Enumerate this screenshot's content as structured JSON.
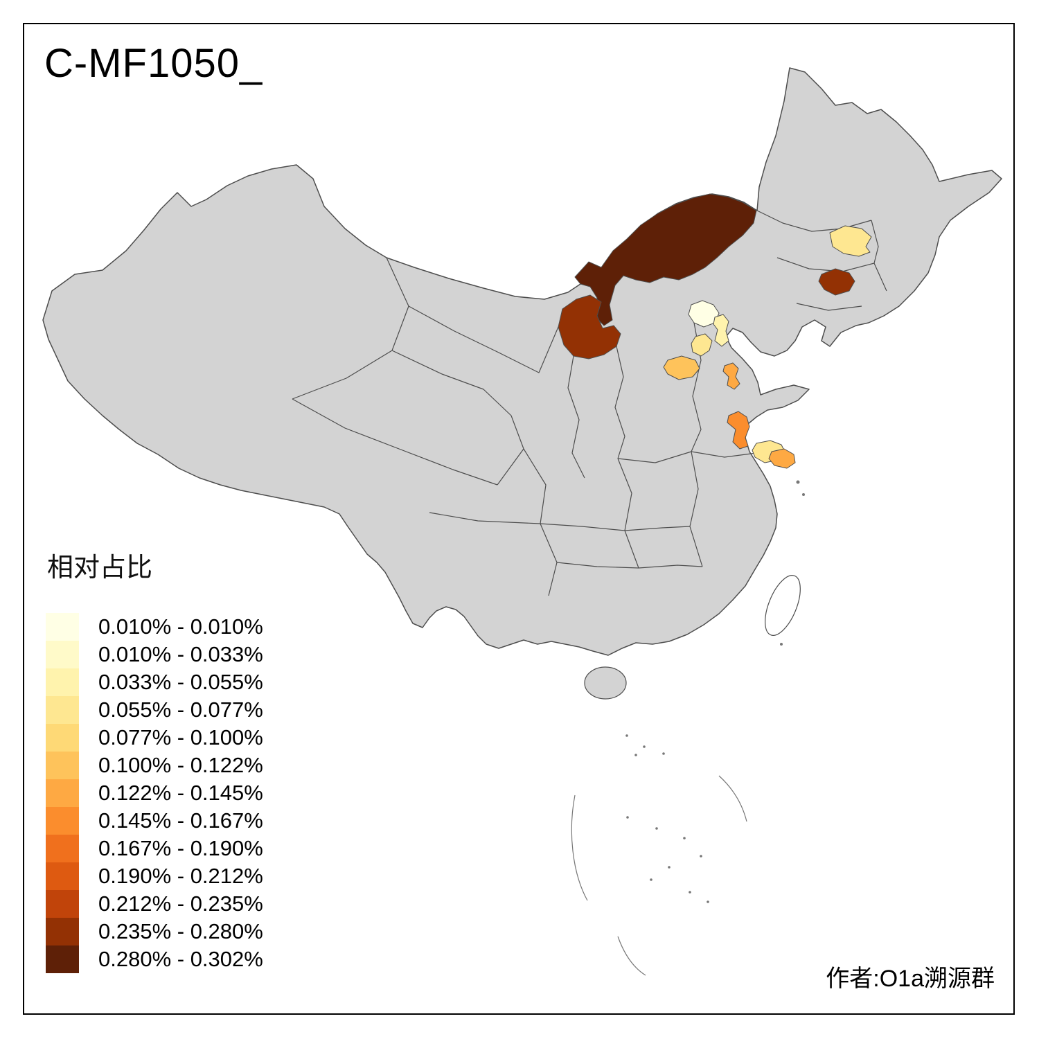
{
  "title": "C-MF1050_",
  "author": "作者:O1a溯源群",
  "legend": {
    "title": "相对占比",
    "items": [
      {
        "label": "0.010% - 0.010%",
        "color": "#FFFFE5"
      },
      {
        "label": "0.010% - 0.033%",
        "color": "#FFFAC9"
      },
      {
        "label": "0.033% - 0.055%",
        "color": "#FFF3AD"
      },
      {
        "label": "0.055% - 0.077%",
        "color": "#FEE791"
      },
      {
        "label": "0.077% - 0.100%",
        "color": "#FED976"
      },
      {
        "label": "0.100% - 0.122%",
        "color": "#FEC35B"
      },
      {
        "label": "0.122% - 0.145%",
        "color": "#FEA943"
      },
      {
        "label": "0.145% - 0.167%",
        "color": "#FB8D2D"
      },
      {
        "label": "0.167% - 0.190%",
        "color": "#F0701D"
      },
      {
        "label": "0.190% - 0.212%",
        "color": "#DE5A11"
      },
      {
        "label": "0.212% - 0.235%",
        "color": "#C1440A"
      },
      {
        "label": "0.235% - 0.280%",
        "color": "#933104"
      },
      {
        "label": "0.280% - 0.302%",
        "color": "#5E2007"
      }
    ]
  },
  "map": {
    "base_fill": "#D3D3D3",
    "border_color": "#4D4D4D",
    "background": "#FFFFFF",
    "regions": [
      {
        "id": "inner-mongolia",
        "color": "#5E2007"
      },
      {
        "id": "ordos-area",
        "color": "#933104"
      },
      {
        "id": "jilin-area",
        "color": "#933104"
      },
      {
        "id": "harbin-area",
        "color": "#FEE791"
      },
      {
        "id": "beijing",
        "color": "#FFFFE5"
      },
      {
        "id": "tianjin",
        "color": "#FFF3AD"
      },
      {
        "id": "hebei-south",
        "color": "#FEE791"
      },
      {
        "id": "shanxi-center",
        "color": "#FEC35B"
      },
      {
        "id": "henan-north",
        "color": "#FEA943"
      },
      {
        "id": "jiangsu-north",
        "color": "#FB8D2D"
      },
      {
        "id": "anhui-east",
        "color": "#FEE791"
      },
      {
        "id": "jiangsu-south",
        "color": "#FEA943"
      }
    ]
  }
}
